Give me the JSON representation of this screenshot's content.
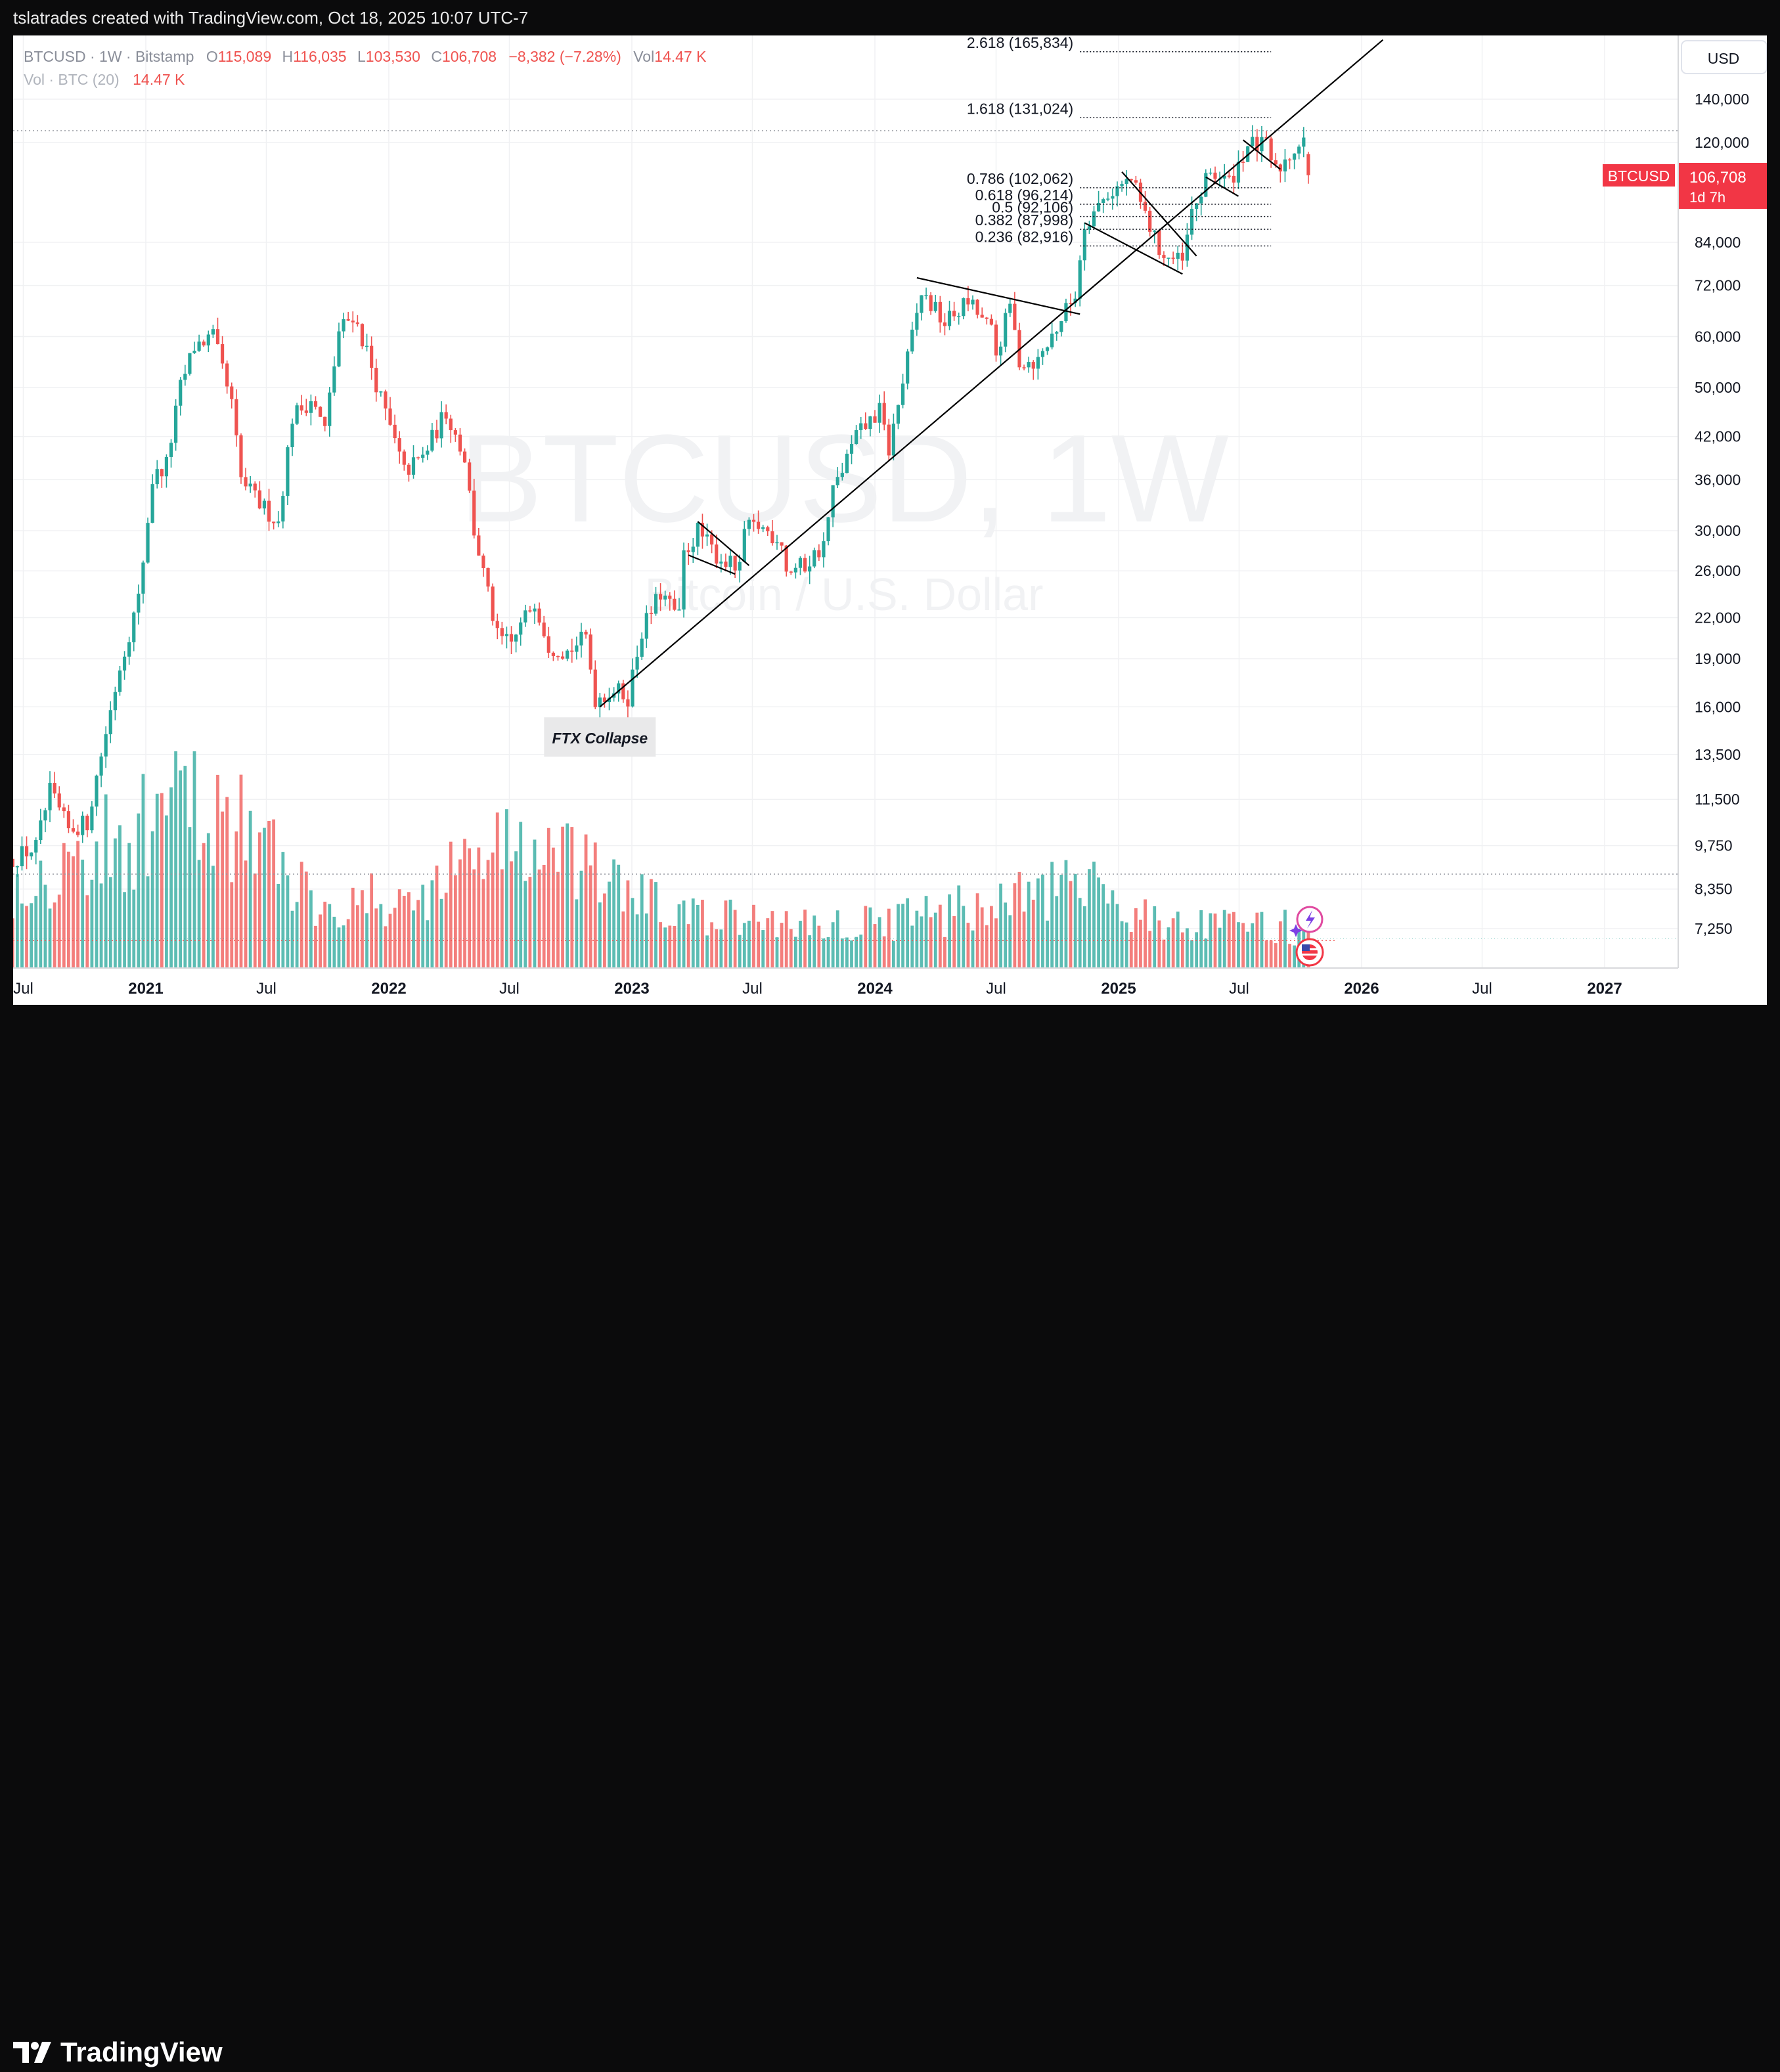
{
  "header": {
    "attribution": "tslatrades created with TradingView.com, Oct 18, 2025 10:07 UTC-7"
  },
  "footer": {
    "brand": "TradingView"
  },
  "legend": {
    "symbol_line": "BTCUSD · 1W · Bitstamp",
    "ohlc": [
      {
        "label": "O",
        "value": "115,089"
      },
      {
        "label": "H",
        "value": "116,035"
      },
      {
        "label": "L",
        "value": "103,530"
      },
      {
        "label": "C",
        "value": "106,708"
      }
    ],
    "change": "−8,382 (−7.28%)",
    "vol_label": "Vol",
    "vol_value": "14.47 K",
    "vol_indicator": "Vol · BTC (20)",
    "vol_indicator_value": "14.47 K"
  },
  "watermark": {
    "symbol": "BTCUSD, 1W",
    "name": "Bitcoin / U.S. Dollar"
  },
  "price_axis": {
    "currency": "USD",
    "last_price": "106,708",
    "countdown": "1d 7h",
    "tag_symbol": "BTCUSD"
  },
  "colors": {
    "up": "#26a69a",
    "down": "#ef5350",
    "line": "#000000"
  },
  "chart_data": {
    "type": "candlestick",
    "scale": "log",
    "interval": "1W",
    "y_ticks": [
      7250,
      8350,
      9750,
      11500,
      13500,
      16000,
      19000,
      22000,
      26000,
      30000,
      36000,
      42000,
      50000,
      60000,
      72000,
      84000,
      120000,
      140000
    ],
    "y_tick_labels": [
      "7,250",
      "8,350",
      "9,750",
      "11,500",
      "13,500",
      "16,000",
      "19,000",
      "22,000",
      "26,000",
      "30,000",
      "36,000",
      "42,000",
      "50,000",
      "60,000",
      "72,000",
      "84,000",
      "120,000",
      "140,000"
    ],
    "x_ticks": [
      {
        "date": "2020-07-01",
        "label": "Jul",
        "bold": false
      },
      {
        "date": "2021-01-01",
        "label": "2021",
        "bold": true
      },
      {
        "date": "2021-07-01",
        "label": "Jul",
        "bold": false
      },
      {
        "date": "2022-01-01",
        "label": "2022",
        "bold": true
      },
      {
        "date": "2022-07-01",
        "label": "Jul",
        "bold": false
      },
      {
        "date": "2023-01-01",
        "label": "2023",
        "bold": true
      },
      {
        "date": "2023-07-01",
        "label": "Jul",
        "bold": false
      },
      {
        "date": "2024-01-01",
        "label": "2024",
        "bold": true
      },
      {
        "date": "2024-07-01",
        "label": "Jul",
        "bold": false
      },
      {
        "date": "2025-01-01",
        "label": "2025",
        "bold": true
      },
      {
        "date": "2025-07-01",
        "label": "Jul",
        "bold": false
      },
      {
        "date": "2026-01-01",
        "label": "2026",
        "bold": true
      },
      {
        "date": "2026-07-01",
        "label": "Jul",
        "bold": false
      },
      {
        "date": "2027-01-01",
        "label": "2027",
        "bold": true
      }
    ],
    "price_path": [
      {
        "date": "2020-06-15",
        "price": 9300
      },
      {
        "date": "2020-07-20",
        "price": 9700
      },
      {
        "date": "2020-08-10",
        "price": 11800
      },
      {
        "date": "2020-09-07",
        "price": 10300
      },
      {
        "date": "2020-10-05",
        "price": 10600
      },
      {
        "date": "2020-10-26",
        "price": 13500
      },
      {
        "date": "2020-11-23",
        "price": 18500
      },
      {
        "date": "2020-12-21",
        "price": 23500
      },
      {
        "date": "2021-01-11",
        "price": 36000
      },
      {
        "date": "2021-02-01",
        "price": 38000
      },
      {
        "date": "2021-02-22",
        "price": 50000
      },
      {
        "date": "2021-03-15",
        "price": 58000
      },
      {
        "date": "2021-04-12",
        "price": 60000
      },
      {
        "date": "2021-05-10",
        "price": 47000
      },
      {
        "date": "2021-05-24",
        "price": 36000
      },
      {
        "date": "2021-06-21",
        "price": 33000
      },
      {
        "date": "2021-07-19",
        "price": 31000
      },
      {
        "date": "2021-08-09",
        "price": 45000
      },
      {
        "date": "2021-09-06",
        "price": 48000
      },
      {
        "date": "2021-09-27",
        "price": 43000
      },
      {
        "date": "2021-10-18",
        "price": 61000
      },
      {
        "date": "2021-11-08",
        "price": 65000
      },
      {
        "date": "2021-11-29",
        "price": 57000
      },
      {
        "date": "2021-12-20",
        "price": 48000
      },
      {
        "date": "2022-01-24",
        "price": 37000
      },
      {
        "date": "2022-02-21",
        "price": 39000
      },
      {
        "date": "2022-03-28",
        "price": 46000
      },
      {
        "date": "2022-04-25",
        "price": 39000
      },
      {
        "date": "2022-05-09",
        "price": 30000
      },
      {
        "date": "2022-06-13",
        "price": 20500
      },
      {
        "date": "2022-07-04",
        "price": 20000
      },
      {
        "date": "2022-08-08",
        "price": 23500
      },
      {
        "date": "2022-08-29",
        "price": 20000
      },
      {
        "date": "2022-09-26",
        "price": 19500
      },
      {
        "date": "2022-10-24",
        "price": 20500
      },
      {
        "date": "2022-11-07",
        "price": 16500
      },
      {
        "date": "2022-12-05",
        "price": 17000
      },
      {
        "date": "2022-12-26",
        "price": 16600
      },
      {
        "date": "2023-01-16",
        "price": 21000
      },
      {
        "date": "2023-02-13",
        "price": 24000
      },
      {
        "date": "2023-03-13",
        "price": 22000
      },
      {
        "date": "2023-03-20",
        "price": 27500
      },
      {
        "date": "2023-04-10",
        "price": 30000
      },
      {
        "date": "2023-05-08",
        "price": 27500
      },
      {
        "date": "2023-06-12",
        "price": 26000
      },
      {
        "date": "2023-06-19",
        "price": 30000
      },
      {
        "date": "2023-07-10",
        "price": 30500
      },
      {
        "date": "2023-08-14",
        "price": 29000
      },
      {
        "date": "2023-08-21",
        "price": 26000
      },
      {
        "date": "2023-09-18",
        "price": 26500
      },
      {
        "date": "2023-10-16",
        "price": 28500
      },
      {
        "date": "2023-10-30",
        "price": 34500
      },
      {
        "date": "2023-12-04",
        "price": 42000
      },
      {
        "date": "2024-01-08",
        "price": 46000
      },
      {
        "date": "2024-01-22",
        "price": 40000
      },
      {
        "date": "2024-02-26",
        "price": 60000
      },
      {
        "date": "2024-03-11",
        "price": 70000
      },
      {
        "date": "2024-04-15",
        "price": 63000
      },
      {
        "date": "2024-05-20",
        "price": 68000
      },
      {
        "date": "2024-06-24",
        "price": 61000
      },
      {
        "date": "2024-07-01",
        "price": 56000
      },
      {
        "date": "2024-07-22",
        "price": 67000
      },
      {
        "date": "2024-08-05",
        "price": 55000
      },
      {
        "date": "2024-09-02",
        "price": 55000
      },
      {
        "date": "2024-09-30",
        "price": 62000
      },
      {
        "date": "2024-10-28",
        "price": 70000
      },
      {
        "date": "2024-11-11",
        "price": 90000
      },
      {
        "date": "2024-12-16",
        "price": 100000
      },
      {
        "date": "2025-01-20",
        "price": 105000
      },
      {
        "date": "2025-02-24",
        "price": 85000
      },
      {
        "date": "2025-03-10",
        "price": 80000
      },
      {
        "date": "2025-04-07",
        "price": 78000
      },
      {
        "date": "2025-04-21",
        "price": 93000
      },
      {
        "date": "2025-05-19",
        "price": 108000
      },
      {
        "date": "2025-06-16",
        "price": 104000
      },
      {
        "date": "2025-07-14",
        "price": 119000
      },
      {
        "date": "2025-08-11",
        "price": 118000
      },
      {
        "date": "2025-08-25",
        "price": 108000
      },
      {
        "date": "2025-09-15",
        "price": 115000
      },
      {
        "date": "2025-10-06",
        "price": 123000
      },
      {
        "date": "2025-10-13",
        "price": 106708
      }
    ],
    "volume_path": [
      {
        "date": "2020-06-15",
        "vol": 30000
      },
      {
        "date": "2021-01-01",
        "vol": 48000
      },
      {
        "date": "2021-02-22",
        "vol": 60000
      },
      {
        "date": "2021-05-17",
        "vol": 52000
      },
      {
        "date": "2021-09-06",
        "vol": 25000
      },
      {
        "date": "2022-01-24",
        "vol": 22000
      },
      {
        "date": "2022-06-13",
        "vol": 45000
      },
      {
        "date": "2022-11-07",
        "vol": 32000
      },
      {
        "date": "2023-03-13",
        "vol": 18000
      },
      {
        "date": "2023-10-30",
        "vol": 15000
      },
      {
        "date": "2024-03-11",
        "vol": 18000
      },
      {
        "date": "2024-11-11",
        "vol": 28000
      },
      {
        "date": "2025-04-07",
        "vol": 14000
      },
      {
        "date": "2025-10-13",
        "vol": 14470
      }
    ],
    "fib_levels": [
      {
        "label": "0.236 (82,916)",
        "price": 82916
      },
      {
        "label": "0.382 (87,998)",
        "price": 87998
      },
      {
        "label": "0.5 (92,106)",
        "price": 92106
      },
      {
        "label": "0.618 (96,214)",
        "price": 96214
      },
      {
        "label": "0.786 (102,062)",
        "price": 102062
      },
      {
        "label": "1.618 (131,024)",
        "price": 131024
      },
      {
        "label": "2.618 (165,834)",
        "price": 165834
      }
    ],
    "trendlines": [
      {
        "from": {
          "date": "2022-11-14",
          "price": 16000
        },
        "to": {
          "date": "2026-02-02",
          "price": 173000
        }
      },
      {
        "from": {
          "date": "2023-03-27",
          "price": 27500
        },
        "to": {
          "date": "2023-06-05",
          "price": 25700
        }
      },
      {
        "from": {
          "date": "2023-04-10",
          "price": 31000
        },
        "to": {
          "date": "2023-06-26",
          "price": 26500
        }
      },
      {
        "from": {
          "date": "2024-03-04",
          "price": 74000
        },
        "to": {
          "date": "2024-11-04",
          "price": 65000
        }
      },
      {
        "from": {
          "date": "2024-11-11",
          "price": 90000
        },
        "to": {
          "date": "2025-04-07",
          "price": 75000
        }
      },
      {
        "from": {
          "date": "2025-01-06",
          "price": 108000
        },
        "to": {
          "date": "2025-04-28",
          "price": 80000
        }
      },
      {
        "from": {
          "date": "2025-05-12",
          "price": 106000
        },
        "to": {
          "date": "2025-06-30",
          "price": 99000
        }
      },
      {
        "from": {
          "date": "2025-07-07",
          "price": 121000
        },
        "to": {
          "date": "2025-09-01",
          "price": 109000
        }
      }
    ],
    "annotations": [
      {
        "text": "FTX Collapse",
        "date": "2022-11-14",
        "price": 14300
      }
    ],
    "last_price": 106708,
    "last_change": -8382,
    "last_change_pct": -7.28
  }
}
